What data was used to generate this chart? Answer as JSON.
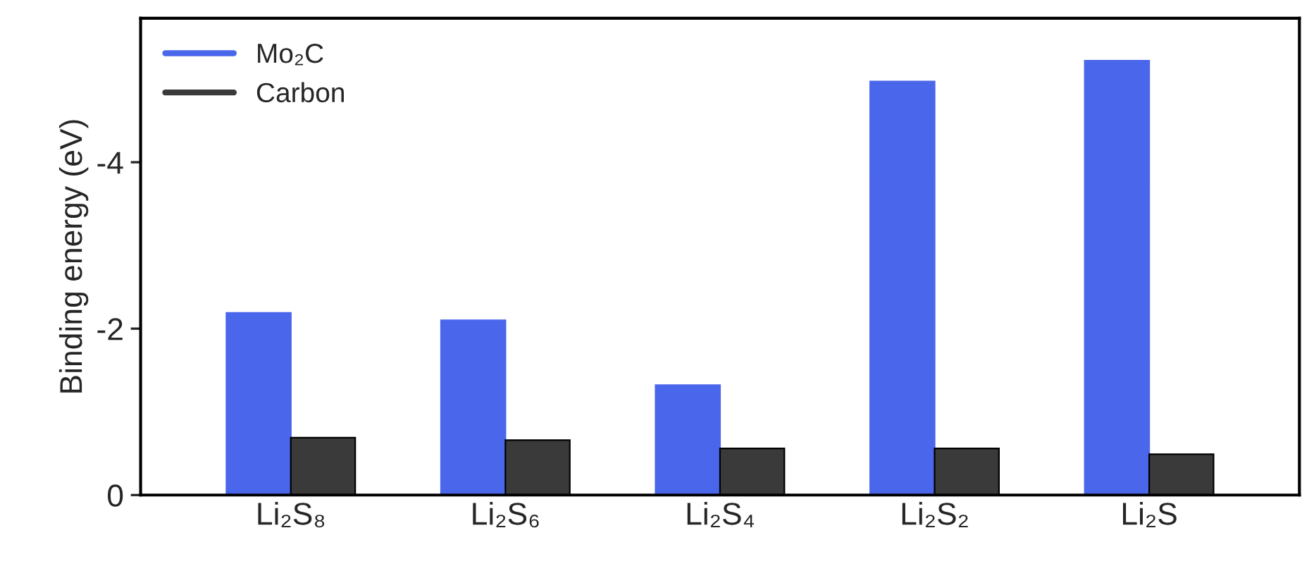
{
  "chart_data": {
    "type": "bar",
    "ylabel": "Binding energy (eV)",
    "categories": [
      "Li₂S₈",
      "Li₂S₆",
      "Li₂S₄",
      "Li₂S₂",
      "Li₂S"
    ],
    "series": [
      {
        "name": "Mo₂C",
        "color": "#4a66ea",
        "values": [
          -2.19,
          -2.1,
          -1.32,
          -4.97,
          -5.22
        ]
      },
      {
        "name": "Carbon",
        "color": "#3a3a3a",
        "values": [
          -0.69,
          -0.66,
          -0.56,
          -0.56,
          -0.49
        ]
      }
    ],
    "ylim": [
      0,
      -5.73
    ],
    "yticks": [
      0,
      -2,
      -4
    ],
    "legend": "top left",
    "grid": false
  }
}
